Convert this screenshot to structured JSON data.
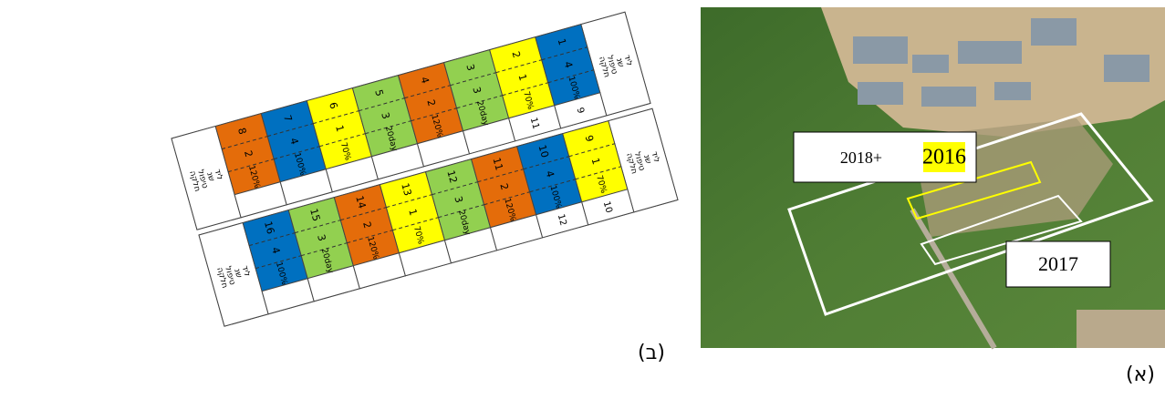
{
  "diagram": {
    "label": "(ב)",
    "row_headers": [
      "חלקה",
      "טיפול",
      "שנ",
      "ליד"
    ],
    "strips": [
      {
        "plots": [
          {
            "number": "8",
            "rep": "2",
            "treatment": "120%",
            "color": "#e46c0a"
          },
          {
            "number": "7",
            "rep": "4",
            "treatment": "100%",
            "color": "#0070c0"
          },
          {
            "number": "6",
            "rep": "1",
            "treatment": "70%",
            "color": "#ffff00"
          },
          {
            "number": "5",
            "rep": "3",
            "treatment": "20day",
            "color": "#92d050"
          },
          {
            "number": "4",
            "rep": "2",
            "treatment": "120%",
            "color": "#e46c0a"
          },
          {
            "number": "3",
            "rep": "3",
            "treatment": "20day",
            "color": "#92d050"
          },
          {
            "number": "2",
            "rep": "1",
            "treatment": "70%",
            "color": "#ffff00",
            "bottom": "11"
          },
          {
            "number": "1",
            "rep": "4",
            "treatment": "100%",
            "color": "#0070c0",
            "bottom": "9"
          }
        ]
      },
      {
        "plots": [
          {
            "number": "16",
            "rep": "4",
            "treatment": "100%",
            "color": "#0070c0"
          },
          {
            "number": "15",
            "rep": "3",
            "treatment": "20day",
            "color": "#92d050"
          },
          {
            "number": "14",
            "rep": "2",
            "treatment": "120%",
            "color": "#e46c0a"
          },
          {
            "number": "13",
            "rep": "1",
            "treatment": "70%",
            "color": "#ffff00"
          },
          {
            "number": "12",
            "rep": "3",
            "treatment": "20day",
            "color": "#92d050"
          },
          {
            "number": "11",
            "rep": "2",
            "treatment": "120%",
            "color": "#e46c0a"
          },
          {
            "number": "10",
            "rep": "4",
            "treatment": "100%",
            "color": "#0070c0",
            "bottom": "12"
          },
          {
            "number": "9",
            "rep": "1",
            "treatment": "70%",
            "color": "#ffff00",
            "bottom": "10"
          }
        ]
      }
    ]
  },
  "map": {
    "label": "(א)",
    "box1": {
      "prefix": "2018+",
      "highlight": "2016"
    },
    "box2": "2017"
  }
}
